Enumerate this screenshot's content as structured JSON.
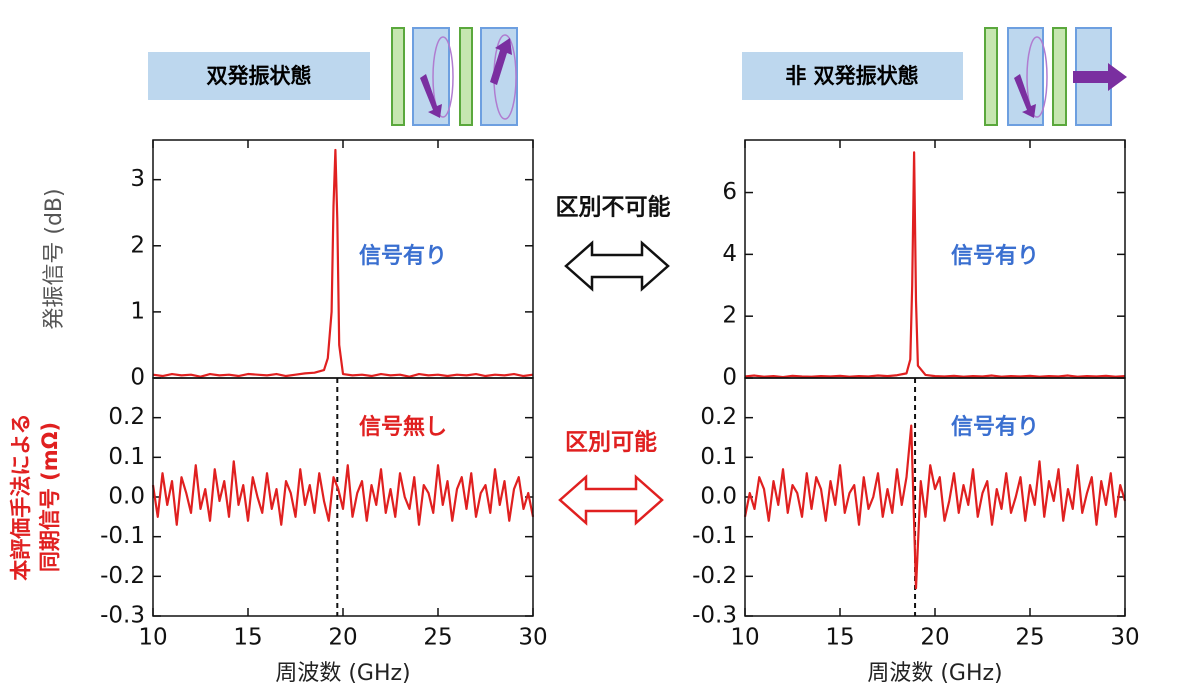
{
  "diagram": {
    "left_state": "双発振状態",
    "right_state": "非 双発振状態",
    "top_arrow": "区別不可能",
    "bottom_arrow": "区別可能"
  },
  "chart_data": [
    {
      "type": "line",
      "color": "#e02020",
      "ylabel": "発振信号 (dB)",
      "x": [
        10,
        10.5,
        11,
        11.5,
        12,
        12.5,
        13,
        13.5,
        14,
        14.5,
        15,
        15.5,
        16,
        16.5,
        17,
        17.5,
        18,
        18.5,
        19,
        19.2,
        19.4,
        19.5,
        19.6,
        19.7,
        19.8,
        20,
        20.5,
        21,
        21.5,
        22,
        22.5,
        23,
        23.5,
        24,
        24.5,
        25,
        25.5,
        26,
        26.5,
        27,
        27.5,
        28,
        28.5,
        29,
        29.5,
        30
      ],
      "values": [
        0.05,
        0.03,
        0.06,
        0.04,
        0.05,
        0.02,
        0.06,
        0.04,
        0.05,
        0.03,
        0.06,
        0.05,
        0.04,
        0.06,
        0.03,
        0.05,
        0.07,
        0.08,
        0.12,
        0.3,
        1.0,
        2.6,
        3.45,
        2.4,
        0.5,
        0.06,
        0.04,
        0.05,
        0.03,
        0.06,
        0.04,
        0.05,
        0.02,
        0.06,
        0.04,
        0.05,
        0.03,
        0.05,
        0.04,
        0.06,
        0.03,
        0.05,
        0.04,
        0.06,
        0.03,
        0.05
      ],
      "xlim": [
        10,
        30
      ],
      "ylim": [
        0,
        3.6
      ],
      "yticks": [
        0,
        1,
        2,
        3
      ],
      "annotation": {
        "text": "信号有り",
        "color": "#3a6fd0"
      }
    },
    {
      "type": "line",
      "color": "#e02020",
      "ylabel": [
        "本評価手法による",
        "同期信号 (mΩ)"
      ],
      "xlabel": "周波数 (GHz)",
      "x": [
        10,
        10.25,
        10.5,
        10.75,
        11,
        11.25,
        11.5,
        11.75,
        12,
        12.25,
        12.5,
        12.75,
        13,
        13.25,
        13.5,
        13.75,
        14,
        14.25,
        14.5,
        14.75,
        15,
        15.25,
        15.5,
        15.75,
        16,
        16.25,
        16.5,
        16.75,
        17,
        17.25,
        17.5,
        17.75,
        18,
        18.25,
        18.5,
        18.75,
        19,
        19.25,
        19.5,
        19.75,
        20,
        20.25,
        20.5,
        20.75,
        21,
        21.25,
        21.5,
        21.75,
        22,
        22.25,
        22.5,
        22.75,
        23,
        23.25,
        23.5,
        23.75,
        24,
        24.25,
        24.5,
        24.75,
        25,
        25.25,
        25.5,
        25.75,
        26,
        26.25,
        26.5,
        26.75,
        27,
        27.25,
        27.5,
        27.75,
        28,
        28.25,
        28.5,
        28.75,
        29,
        29.25,
        29.5,
        29.75,
        30
      ],
      "values": [
        0.03,
        -0.05,
        0.06,
        -0.02,
        0.04,
        -0.07,
        0.05,
        0.01,
        -0.04,
        0.08,
        -0.03,
        0.02,
        -0.06,
        0.07,
        -0.01,
        0.04,
        -0.05,
        0.09,
        -0.02,
        0.03,
        -0.06,
        0.05,
        0.0,
        -0.04,
        0.06,
        -0.03,
        0.02,
        -0.07,
        0.04,
        0.01,
        -0.05,
        0.07,
        -0.02,
        0.03,
        -0.04,
        0.06,
        -0.01,
        -0.06,
        0.05,
        0.02,
        -0.03,
        0.08,
        -0.05,
        0.01,
        0.04,
        -0.06,
        0.03,
        -0.02,
        0.07,
        -0.04,
        0.02,
        -0.05,
        0.06,
        0.0,
        -0.03,
        0.05,
        -0.07,
        0.03,
        0.01,
        -0.04,
        0.08,
        -0.02,
        0.04,
        -0.06,
        0.02,
        0.05,
        -0.03,
        0.06,
        -0.05,
        0.01,
        0.03,
        -0.04,
        0.07,
        -0.02,
        0.04,
        -0.06,
        0.02,
        0.05,
        -0.03,
        0.01,
        -0.05
      ],
      "xlim": [
        10,
        30
      ],
      "xticks": [
        10,
        15,
        20,
        25,
        30
      ],
      "ylim": [
        -0.3,
        0.3
      ],
      "yticks": [
        -0.3,
        -0.2,
        -0.1,
        {
          "value": 0,
          "label": "0.0"
        },
        0.1,
        0.2
      ],
      "vline": 19.7,
      "annotation": {
        "text": "信号無し",
        "color": "#e02020"
      }
    },
    {
      "type": "line",
      "color": "#e02020",
      "x": [
        10,
        10.5,
        11,
        11.5,
        12,
        12.5,
        13,
        13.5,
        14,
        14.5,
        15,
        15.5,
        16,
        16.5,
        17,
        17.5,
        18,
        18.5,
        18.7,
        18.8,
        18.9,
        19.0,
        19.1,
        19.5,
        20,
        20.5,
        21,
        21.5,
        22,
        22.5,
        23,
        23.5,
        24,
        24.5,
        25,
        25.5,
        26,
        26.5,
        27,
        27.5,
        28,
        28.5,
        29,
        29.5,
        30
      ],
      "values": [
        0.05,
        0.08,
        0.04,
        0.06,
        0.03,
        0.07,
        0.05,
        0.04,
        0.06,
        0.05,
        0.07,
        0.04,
        0.06,
        0.05,
        0.08,
        0.06,
        0.09,
        0.15,
        0.6,
        3.0,
        7.3,
        2.5,
        0.4,
        0.1,
        0.06,
        0.05,
        0.07,
        0.04,
        0.06,
        0.05,
        0.08,
        0.04,
        0.06,
        0.05,
        0.07,
        0.04,
        0.06,
        0.05,
        0.08,
        0.04,
        0.06,
        0.05,
        0.07,
        0.04,
        0.06
      ],
      "xlim": [
        10,
        30
      ],
      "ylim": [
        0,
        7.7
      ],
      "yticks": [
        0,
        2,
        4,
        6
      ],
      "annotation": {
        "text": "信号有り",
        "color": "#3a6fd0"
      }
    },
    {
      "type": "line",
      "color": "#e02020",
      "xlabel": "周波数 (GHz)",
      "x": [
        10,
        10.25,
        10.5,
        10.75,
        11,
        11.25,
        11.5,
        11.75,
        12,
        12.25,
        12.5,
        12.75,
        13,
        13.25,
        13.5,
        13.75,
        14,
        14.25,
        14.5,
        14.75,
        15,
        15.25,
        15.5,
        15.75,
        16,
        16.25,
        16.5,
        16.75,
        17,
        17.25,
        17.5,
        17.75,
        18,
        18.25,
        18.5,
        18.75,
        19,
        19.25,
        19.5,
        19.75,
        20,
        20.25,
        20.5,
        20.75,
        21,
        21.25,
        21.5,
        21.75,
        22,
        22.25,
        22.5,
        22.75,
        23,
        23.25,
        23.5,
        23.75,
        24,
        24.25,
        24.5,
        24.75,
        25,
        25.25,
        25.5,
        25.75,
        26,
        26.25,
        26.5,
        26.75,
        27,
        27.25,
        27.5,
        27.75,
        28,
        28.25,
        28.5,
        28.75,
        29,
        29.25,
        29.5,
        29.75,
        30
      ],
      "values": [
        -0.05,
        0.01,
        -0.03,
        0.05,
        0.02,
        -0.06,
        0.04,
        -0.02,
        0.07,
        -0.04,
        0.03,
        0.01,
        -0.05,
        0.06,
        -0.03,
        0.05,
        0.02,
        -0.06,
        0.04,
        -0.02,
        0.08,
        -0.04,
        0.01,
        0.03,
        -0.07,
        0.05,
        -0.03,
        0.0,
        0.06,
        -0.05,
        0.02,
        -0.04,
        0.07,
        -0.02,
        0.05,
        0.18,
        -0.23,
        0.04,
        -0.05,
        0.08,
        0.02,
        0.05,
        -0.06,
        -0.01,
        0.06,
        -0.04,
        0.03,
        -0.02,
        0.07,
        -0.05,
        0.01,
        0.04,
        -0.07,
        0.02,
        -0.03,
        0.06,
        -0.04,
        0.0,
        0.05,
        -0.06,
        0.03,
        -0.02,
        0.09,
        -0.05,
        0.04,
        -0.01,
        0.07,
        -0.06,
        0.02,
        -0.03,
        0.08,
        -0.04,
        0.01,
        0.05,
        -0.07,
        0.04,
        -0.02,
        0.06,
        -0.05,
        0.03,
        -0.01
      ],
      "xlim": [
        10,
        30
      ],
      "xticks": [
        10,
        15,
        20,
        25,
        30
      ],
      "ylim": [
        -0.3,
        0.3
      ],
      "yticks": [
        -0.3,
        -0.2,
        -0.1,
        {
          "value": 0,
          "label": "0.0"
        },
        0.1,
        0.2
      ],
      "vline": 18.95,
      "annotation": {
        "text": "信号有り",
        "color": "#3a6fd0"
      }
    }
  ]
}
